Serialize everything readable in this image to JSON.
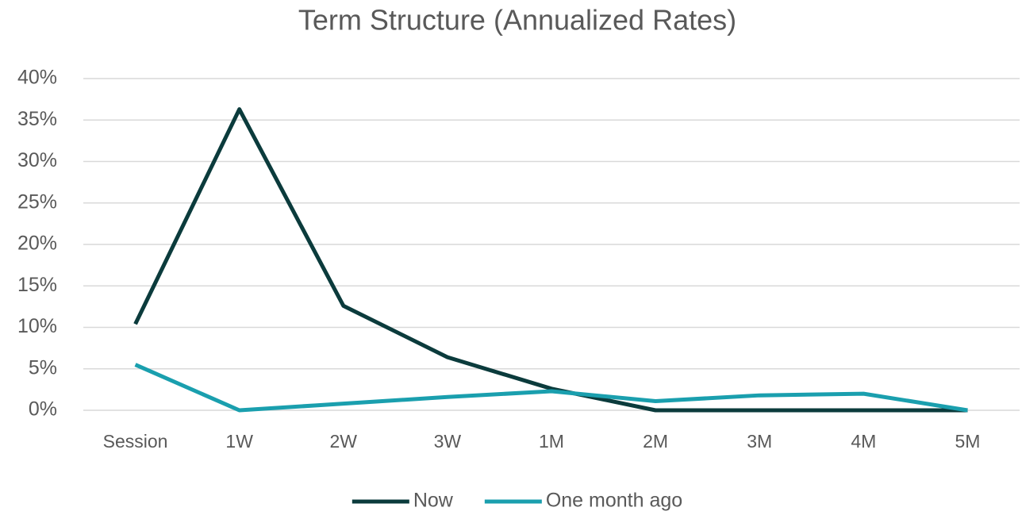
{
  "chart_data": {
    "type": "line",
    "title": "Term Structure (Annualized Rates)",
    "categories": [
      "Session",
      "1W",
      "2W",
      "3W",
      "1M",
      "2M",
      "3M",
      "4M",
      "5M"
    ],
    "series": [
      {
        "name": "Now",
        "color": "#0b3b3c",
        "values": [
          10.4,
          36.3,
          12.6,
          6.4,
          2.6,
          0,
          0,
          0,
          0
        ]
      },
      {
        "name": "One month ago",
        "color": "#1a9fae",
        "values": [
          5.5,
          0,
          0.8,
          1.6,
          2.3,
          1.1,
          1.8,
          2.0,
          0
        ]
      }
    ],
    "ylim": [
      0,
      40
    ],
    "yticks": [
      {
        "value": 0,
        "label": "0%"
      },
      {
        "value": 5,
        "label": "5%"
      },
      {
        "value": 10,
        "label": "10%"
      },
      {
        "value": 15,
        "label": "15%"
      },
      {
        "value": 20,
        "label": "20%"
      },
      {
        "value": 25,
        "label": "25%"
      },
      {
        "value": 30,
        "label": "30%"
      },
      {
        "value": 35,
        "label": "35%"
      },
      {
        "value": 40,
        "label": "40%"
      }
    ],
    "grid": true,
    "legend": "bottom"
  }
}
